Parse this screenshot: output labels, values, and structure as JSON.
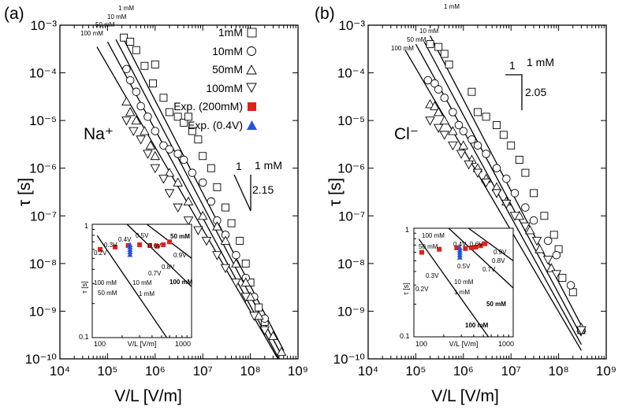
{
  "figure": {
    "colors": {
      "exp_red": "#e3201b",
      "exp_blue": "#2255dd",
      "ink": "#000000"
    }
  },
  "chart_data": [
    {
      "panel": "(a)",
      "ion": "Na⁺",
      "type": "scatter",
      "xlabel": "V/L [V/m]",
      "ylabel": "τ [s]",
      "xlim": [
        10000,
        1000000000
      ],
      "ylim": [
        1e-10,
        0.001
      ],
      "x_ticks": [
        "10⁴",
        "10⁵",
        "10⁶",
        "10⁷",
        "10⁸",
        "10⁹"
      ],
      "y_ticks": [
        "10⁻¹⁰",
        "10⁻⁹",
        "10⁻⁸",
        "10⁻⁷",
        "10⁻⁶",
        "10⁻⁵",
        "10⁻⁴",
        "10⁻³"
      ],
      "legend": [
        "1mM",
        "10mM",
        "50mM",
        "100mM",
        "Exp. (200mM)",
        "Exp. (0.4V)"
      ],
      "fit_labels": [
        "1 mM",
        "10 mM",
        "50 mM",
        "100 mM"
      ],
      "slope": {
        "run": "1",
        "rise": "2.15",
        "label": "1 mM"
      },
      "fit_lines": [
        {
          "name": "1mM",
          "points": [
            [
              200000,
              0.0006
            ],
            [
              500000000,
              1.5e-10
            ]
          ]
        },
        {
          "name": "10mM",
          "points": [
            [
              150000,
              0.0005
            ],
            [
              450000000,
              1.2e-10
            ]
          ]
        },
        {
          "name": "50mM",
          "points": [
            [
              100000,
              0.00045
            ],
            [
              400000000,
              1e-10
            ]
          ]
        },
        {
          "name": "100mM",
          "points": [
            [
              60000,
              0.00035
            ],
            [
              380000000,
              1e-10
            ]
          ]
        }
      ],
      "series": [
        {
          "name": "1mM",
          "marker": "square",
          "points": [
            [
              220000,
              0.00055
            ],
            [
              300000,
              0.00045
            ],
            [
              400000,
              0.0003
            ],
            [
              600000,
              0.00014
            ],
            [
              1000000,
              0.00015
            ],
            [
              900000,
              6e-05
            ],
            [
              1500000,
              3e-05
            ],
            [
              2000000,
              1.5e-05
            ],
            [
              3000000,
              1.2e-05
            ],
            [
              4000000,
              9e-06
            ],
            [
              5000000,
              1.2e-05
            ],
            [
              6000000,
              6e-06
            ],
            [
              8000000,
              4e-06
            ],
            [
              10000000,
              1.8e-06
            ],
            [
              15000000,
              1e-06
            ],
            [
              20000000,
              4e-07
            ],
            [
              30000000,
              1.5e-07
            ],
            [
              40000000,
              7e-08
            ],
            [
              60000000,
              3e-08
            ],
            [
              80000000,
              1e-08
            ],
            [
              100000000,
              4e-09
            ],
            [
              150000000,
              1.2e-09
            ],
            [
              200000000,
              6e-10
            ]
          ]
        },
        {
          "name": "10mM",
          "marker": "circle",
          "points": [
            [
              250000,
              0.00012
            ],
            [
              300000,
              7e-05
            ],
            [
              400000,
              4e-05
            ],
            [
              500000,
              2e-05
            ],
            [
              700000,
              1.2e-05
            ],
            [
              1000000,
              6e-06
            ],
            [
              1500000,
              3e-06
            ],
            [
              2000000,
              2.5e-06
            ],
            [
              3000000,
              2e-06
            ],
            [
              4000000,
              1.5e-06
            ],
            [
              6000000,
              8e-07
            ],
            [
              10000000,
              5e-07
            ],
            [
              15000000,
              2e-07
            ],
            [
              20000000,
              8e-08
            ],
            [
              30000000,
              4e-08
            ],
            [
              50000000,
              1.5e-08
            ],
            [
              80000000,
              5e-09
            ],
            [
              120000000,
              2e-09
            ],
            [
              200000000,
              7e-10
            ]
          ]
        },
        {
          "name": "50mM",
          "marker": "triangle-up",
          "points": [
            [
              250000,
              2.5e-05
            ],
            [
              300000,
              1.5e-05
            ],
            [
              400000,
              1e-05
            ],
            [
              600000,
              6e-06
            ],
            [
              800000,
              3e-06
            ],
            [
              1000000,
              1.8e-06
            ],
            [
              2000000,
              8e-07
            ],
            [
              3000000,
              5e-07
            ],
            [
              5000000,
              2e-07
            ],
            [
              10000000,
              1e-07
            ],
            [
              20000000,
              6e-08
            ],
            [
              30000000,
              3e-08
            ],
            [
              50000000,
              1e-08
            ],
            [
              80000000,
              4e-09
            ],
            [
              100000000,
              2e-09
            ],
            [
              150000000,
              8e-10
            ],
            [
              300000000,
              3e-10
            ],
            [
              450000000,
              1.4e-10
            ]
          ]
        },
        {
          "name": "100mM",
          "marker": "triangle-down",
          "points": [
            [
              250000,
              1e-05
            ],
            [
              350000,
              6e-06
            ],
            [
              500000,
              4e-06
            ],
            [
              700000,
              2e-06
            ],
            [
              1000000,
              1e-06
            ],
            [
              1500000,
              6e-07
            ],
            [
              2000000,
              3e-07
            ],
            [
              3000000,
              1.5e-07
            ],
            [
              5000000,
              8e-08
            ],
            [
              8000000,
              5e-08
            ],
            [
              12000000,
              3e-08
            ],
            [
              20000000,
              1.5e-08
            ],
            [
              30000000,
              8e-09
            ],
            [
              50000000,
              4e-09
            ],
            [
              80000000,
              2e-09
            ],
            [
              120000000,
              8e-10
            ],
            [
              200000000,
              4e-10
            ]
          ]
        }
      ],
      "inset": {
        "xlabel": "V/L [V/m]",
        "ylabel": "τ [s]",
        "xlim": [
          100,
          1000
        ],
        "ylim": [
          0.1,
          1
        ],
        "x_ticks": [
          "100",
          "1000"
        ],
        "y_ticks": [
          "0.1",
          "1"
        ],
        "red_labels": [
          "0.2V",
          "0.3V",
          "0.4V",
          "0.5V",
          "0.6V",
          "0.7V",
          "0.8V",
          "0.9V"
        ],
        "blue_labels": [
          "100 mM",
          "50 mM",
          "10 mM",
          "1 mM"
        ],
        "line_labels": [
          "50 mM",
          "100 mM"
        ],
        "red_points": [
          [
            120,
            0.6
          ],
          [
            170,
            0.63
          ],
          [
            230,
            0.65
          ],
          [
            300,
            0.66
          ],
          [
            380,
            0.65
          ],
          [
            450,
            0.64
          ],
          [
            520,
            0.66
          ],
          [
            600,
            0.7
          ]
        ],
        "blue_points": [
          [
            240,
            0.66
          ],
          [
            240,
            0.63
          ],
          [
            240,
            0.6
          ],
          [
            240,
            0.57
          ],
          [
            240,
            0.54
          ]
        ]
      }
    },
    {
      "panel": "(b)",
      "ion": "Cl⁻",
      "type": "scatter",
      "xlabel": "V/L [V/m]",
      "ylabel": "τ [s]",
      "xlim": [
        10000,
        1000000000
      ],
      "ylim": [
        1e-10,
        0.001
      ],
      "x_ticks": [
        "10⁴",
        "10⁵",
        "10⁶",
        "10⁷",
        "10⁸",
        "10⁹"
      ],
      "y_ticks": [
        "10⁻¹⁰",
        "10⁻⁹",
        "10⁻⁸",
        "10⁻⁷",
        "10⁻⁶",
        "10⁻⁵",
        "10⁻⁴",
        "10⁻³"
      ],
      "fit_labels": [
        "1 mM",
        "10 mM",
        "50 mM",
        "100 mM"
      ],
      "slope": {
        "run": "1",
        "rise": "2.05",
        "label": "1 mM"
      },
      "fit_lines": [
        {
          "name": "1mM",
          "points": [
            [
              200000,
              0.0006
            ],
            [
              300000000,
              5e-10
            ]
          ]
        },
        {
          "name": "10mM",
          "points": [
            [
              150000,
              0.00045
            ],
            [
              300000000,
              3e-10
            ]
          ]
        },
        {
          "name": "50mM",
          "points": [
            [
              100000,
              0.0004
            ],
            [
              300000000,
              2e-10
            ]
          ]
        },
        {
          "name": "100mM",
          "points": [
            [
              60000,
              0.0003
            ],
            [
              300000000,
              1.5e-10
            ]
          ]
        }
      ],
      "series": [
        {
          "name": "1mM",
          "marker": "square",
          "points": [
            [
              200000,
              0.0004
            ],
            [
              300000,
              0.00035
            ],
            [
              400000,
              0.00025
            ],
            [
              500000,
              0.00015
            ],
            [
              1500000,
              4e-05
            ],
            [
              2000000,
              1.5e-05
            ],
            [
              3000000,
              1.2e-05
            ],
            [
              5000000,
              8e-06
            ],
            [
              7000000,
              5e-06
            ],
            [
              10000000,
              3e-06
            ],
            [
              15000000,
              1.5e-06
            ],
            [
              20000000,
              8e-07
            ],
            [
              30000000,
              3e-07
            ],
            [
              50000000,
              1e-07
            ],
            [
              80000000,
              4e-08
            ],
            [
              100000000,
              2e-08
            ],
            [
              120000000,
              5e-09
            ],
            [
              200000000,
              2.5e-09
            ],
            [
              300000000,
              4e-10
            ]
          ]
        },
        {
          "name": "10mM",
          "marker": "circle",
          "points": [
            [
              180000,
              7e-05
            ],
            [
              250000,
              6e-05
            ],
            [
              300000,
              4.5e-05
            ],
            [
              400000,
              3e-05
            ],
            [
              600000,
              1.5e-05
            ],
            [
              800000,
              8e-06
            ],
            [
              1000000,
              6e-06
            ],
            [
              1500000,
              4e-06
            ],
            [
              2000000,
              3e-06
            ],
            [
              3000000,
              2e-06
            ],
            [
              5000000,
              1e-06
            ],
            [
              8000000,
              6e-07
            ],
            [
              12000000,
              3e-07
            ],
            [
              20000000,
              1.5e-07
            ],
            [
              30000000,
              8e-08
            ],
            [
              60000000,
              3e-08
            ],
            [
              90000000,
              1.5e-08
            ],
            [
              180000000,
              3.5e-09
            ],
            [
              300000000,
              4e-10
            ]
          ]
        },
        {
          "name": "50mM",
          "marker": "triangle-up",
          "points": [
            [
              200000,
              2.2e-05
            ],
            [
              250000,
              2e-05
            ],
            [
              300000,
              1.5e-05
            ],
            [
              400000,
              1e-05
            ],
            [
              600000,
              6e-06
            ],
            [
              1000000,
              3e-06
            ],
            [
              1500000,
              1.5e-06
            ],
            [
              2000000,
              1e-06
            ],
            [
              3000000,
              6e-07
            ],
            [
              5000000,
              4e-07
            ],
            [
              8000000,
              2e-07
            ],
            [
              15000000,
              1e-07
            ],
            [
              25000000,
              5e-08
            ],
            [
              40000000,
              2e-08
            ],
            [
              70000000,
              8e-09
            ],
            [
              300000000,
              4.5e-10
            ]
          ]
        },
        {
          "name": "100mM",
          "marker": "triangle-down",
          "points": [
            [
              200000,
              1e-05
            ],
            [
              300000,
              7e-06
            ],
            [
              400000,
              5e-06
            ],
            [
              600000,
              3e-06
            ],
            [
              900000,
              2e-06
            ],
            [
              1300000,
              1.2e-06
            ],
            [
              2000000,
              8e-07
            ],
            [
              3000000,
              5e-07
            ],
            [
              5000000,
              3e-07
            ],
            [
              8000000,
              1.8e-07
            ],
            [
              12000000,
              1e-07
            ],
            [
              20000000,
              6e-08
            ],
            [
              35000000,
              3e-08
            ],
            [
              60000000,
              1.2e-08
            ],
            [
              90000000,
              6e-09
            ],
            [
              300000000,
              4e-10
            ]
          ]
        }
      ],
      "inset": {
        "xlabel": "V/L [V/m]",
        "ylabel": "τ [s]",
        "xlim": [
          100,
          1000
        ],
        "ylim": [
          0.1,
          1
        ],
        "x_ticks": [
          "100",
          "1000"
        ],
        "y_ticks": [
          "0.1",
          "1"
        ],
        "red_labels": [
          "0.2V",
          "0.3V",
          "0.4V",
          "0.5V",
          "0.6V",
          "0.7V",
          "0.8V",
          "0.9V"
        ],
        "blue_labels": [
          "100 mM",
          "50 mM",
          "10 mM",
          "1 mM"
        ],
        "line_labels": [
          "50 mM",
          "100 mM"
        ],
        "red_points": [
          [
            120,
            0.6
          ],
          [
            180,
            0.64
          ],
          [
            270,
            0.66
          ],
          [
            330,
            0.65
          ],
          [
            380,
            0.66
          ],
          [
            420,
            0.67
          ],
          [
            470,
            0.69
          ],
          [
            520,
            0.72
          ]
        ],
        "blue_points": [
          [
            290,
            0.66
          ],
          [
            290,
            0.63
          ],
          [
            290,
            0.6
          ],
          [
            290,
            0.57
          ],
          [
            290,
            0.54
          ]
        ]
      }
    }
  ]
}
